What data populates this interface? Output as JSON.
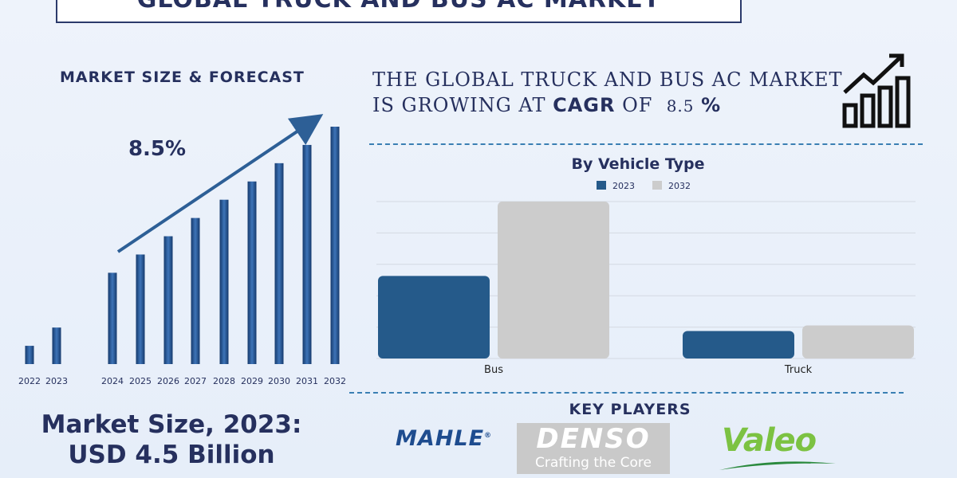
{
  "title": "GLOBAL TRUCK AND BUS AC MARKET",
  "market_section": {
    "heading": "MARKET SIZE & FORECAST",
    "cagr_label": "8.5%"
  },
  "cagr_statement": {
    "line1": "THE GLOBAL TRUCK AND BUS AC MARKET",
    "line2_prefix": "IS GROWING AT",
    "line2_keyword": "CAGR",
    "line2_mid": "OF",
    "line2_value": "8.5",
    "line2_unit": "%"
  },
  "market_size": {
    "line1": "Market Size, 2023:",
    "line2": "USD 4.5 Billion"
  },
  "key_players": {
    "heading": "KEY PLAYERS",
    "logos": [
      {
        "name": "MAHLE",
        "color": "#1e4c8f"
      },
      {
        "name": "DENSO",
        "tagline": "Crafting the Core",
        "color": "#c8c8c8"
      },
      {
        "name": "Valeo",
        "color": "#7cc242"
      }
    ]
  },
  "icons": [
    "growth-chart-icon",
    "growth-arrow-icon"
  ],
  "chart_data": [
    {
      "type": "bar",
      "title": "",
      "categories": [
        "2022",
        "2023",
        "2024",
        "2025",
        "2026",
        "2027",
        "2028",
        "2029",
        "2030",
        "2031",
        "2032"
      ],
      "values": [
        1.0,
        2.0,
        5.0,
        6.0,
        7.0,
        8.0,
        9.0,
        10.0,
        11.0,
        12.0,
        13.0
      ],
      "ylim": [
        0,
        13
      ],
      "bar_color": "#1f4e8c",
      "trend_arrow": true,
      "annotation": "8.5%",
      "grid": false
    },
    {
      "type": "bar",
      "title": "By Vehicle Type",
      "categories": [
        "Bus",
        "Truck"
      ],
      "series": [
        {
          "name": "2023",
          "values": [
            3.0,
            1.0
          ],
          "color": "#255a8a"
        },
        {
          "name": "2032",
          "values": [
            5.7,
            1.2
          ],
          "color": "#cccccc"
        }
      ],
      "ylim": [
        0,
        5.7
      ],
      "legend": "top-center",
      "grid": true
    }
  ]
}
